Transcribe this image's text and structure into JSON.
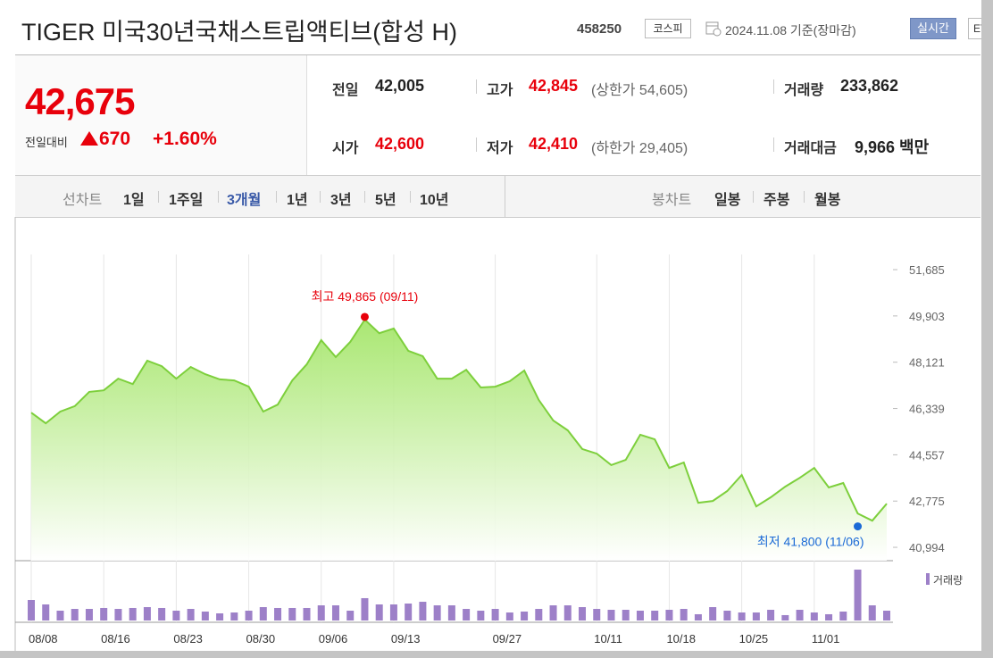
{
  "header": {
    "title": "TIGER 미국30년국채스트립액티브(합성 H)",
    "code": "458250",
    "market": "코스피",
    "date": "2024.11.08 기준(장마감)",
    "realtime": "실시간",
    "etf": "ETF"
  },
  "price": {
    "current": "42,675",
    "change_label": "전일대비",
    "change": "670",
    "change_pct": "+1.60%"
  },
  "stats": [
    {
      "label": "전일",
      "value": "42,005"
    },
    {
      "label": "고가",
      "value": "42,845",
      "note": "(상한가 54,605)"
    },
    {
      "label": "거래량",
      "value": "233,862"
    },
    {
      "label": "시가",
      "value": "42,600"
    },
    {
      "label": "저가",
      "value": "42,410",
      "note": "(하한가 29,405)"
    },
    {
      "label": "거래대금",
      "value": "9,966 백만"
    }
  ],
  "tabs": {
    "line_label": "선차트",
    "periods": [
      "1일",
      "1주일",
      "3개월",
      "1년",
      "3년",
      "5년",
      "10년"
    ],
    "candle_label": "봉차트",
    "candles": [
      "일봉",
      "주봉",
      "월봉"
    ]
  },
  "chart_data": {
    "type": "line",
    "categories": [
      "08/08",
      null,
      null,
      null,
      null,
      "08/16",
      null,
      null,
      null,
      null,
      "08/23",
      null,
      null,
      null,
      null,
      "08/30",
      null,
      null,
      null,
      null,
      "09/06",
      null,
      null,
      null,
      null,
      "09/13",
      null,
      null,
      null,
      null,
      null,
      null,
      "09/27",
      null,
      null,
      null,
      null,
      null,
      null,
      "10/11",
      null,
      null,
      null,
      null,
      "10/18",
      null,
      null,
      null,
      null,
      "10/25",
      null,
      null,
      null,
      null,
      "11/01",
      null,
      null,
      null,
      null,
      null
    ],
    "series": [
      {
        "color": "#7dcf3c",
        "values": [
          46180,
          45770,
          46220,
          46430,
          46980,
          47040,
          47490,
          47280,
          48180,
          47970,
          47490,
          47940,
          47660,
          47460,
          47420,
          47180,
          46220,
          46490,
          47420,
          48040,
          48970,
          48320,
          48900,
          49760,
          49240,
          49420,
          48560,
          48350,
          47490,
          47490,
          47830,
          47150,
          47180,
          47390,
          47800,
          46670,
          45880,
          45500,
          44780,
          44600,
          44160,
          44360,
          45330,
          45150,
          44050,
          44260,
          42710,
          42780,
          43160,
          43780,
          42570,
          42920,
          43330,
          43670,
          44050,
          43300,
          43470,
          42300,
          42020,
          42675
        ]
      },
      {
        "name": "거래량",
        "type": "bar",
        "color": "#9d80c8",
        "values": [
          489000,
          383000,
          234000,
          276000,
          276000,
          298000,
          276000,
          298000,
          319000,
          298000,
          234000,
          276000,
          213000,
          170000,
          191000,
          234000,
          319000,
          298000,
          298000,
          298000,
          361000,
          361000,
          234000,
          532000,
          383000,
          383000,
          404000,
          446000,
          361000,
          361000,
          276000,
          234000,
          276000,
          191000,
          213000,
          276000,
          361000,
          361000,
          319000,
          276000,
          255000,
          255000,
          234000,
          234000,
          255000,
          276000,
          149000,
          319000,
          234000,
          191000,
          191000,
          255000,
          128000,
          255000,
          191000,
          149000,
          213000,
          1212000,
          361000,
          233862
        ]
      }
    ],
    "ylim": [
      40480,
      52270
    ],
    "yticks": [
      {
        "value": 51685,
        "label": "51,685"
      },
      {
        "value": 49903,
        "label": "49,903"
      },
      {
        "value": 48121,
        "label": "48,121"
      },
      {
        "value": 46339,
        "label": "46,339"
      },
      {
        "value": 44557,
        "label": "44,557"
      },
      {
        "value": 42775,
        "label": "42,775"
      },
      {
        "value": 40994,
        "label": "40,994"
      }
    ],
    "grid": true,
    "annotations": [
      {
        "label": "최고 49,865 (09/11)",
        "value": 49865,
        "color": "#e8000b"
      },
      {
        "label": "최저 41,800 (11/06)",
        "value": 41800,
        "color": "#1b6ad6"
      }
    ]
  }
}
